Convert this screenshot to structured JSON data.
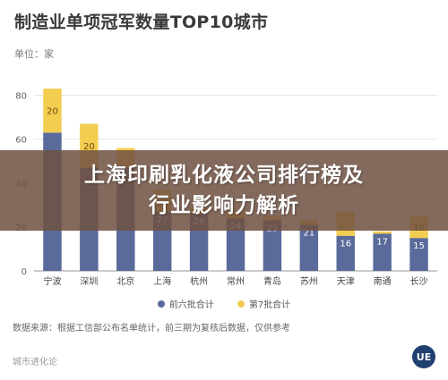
{
  "header": {
    "title": "制造业单项冠军数量TOP10城市",
    "unit": "单位：家"
  },
  "overlay": {
    "line1": "上海印刷乳化液公司排行榜及",
    "line2": "行业影响力解析"
  },
  "footer": {
    "source": "数据来源：根据工信部公布名单统计，前三期为复核后数据，仅供参考",
    "brand": "城市进化论",
    "logo": "UE"
  },
  "colors": {
    "series1": "#5a6a9a",
    "series2": "#f3cd50",
    "grid": "#e6e6e6",
    "axis": "#666666",
    "overlay": "#705242"
  },
  "chart_data": {
    "type": "bar",
    "stacked": true,
    "categories": [
      "宁波",
      "深圳",
      "北京",
      "上海",
      "杭州",
      "常州",
      "青岛",
      "苏州",
      "天津",
      "南通",
      "长沙"
    ],
    "series": [
      {
        "name": "前六批合计",
        "values": [
          63,
          47,
          47,
          27,
          26,
          24,
          23,
          21,
          16,
          17,
          15
        ],
        "labels": [
          "",
          "",
          "",
          "27",
          "26",
          "24",
          "23",
          "21",
          "16",
          "17",
          "15"
        ]
      },
      {
        "name": "第7批合计",
        "values": [
          20,
          20,
          9,
          10,
          3,
          3,
          2,
          2,
          11,
          1,
          10
        ],
        "labels": [
          "20",
          "20",
          "",
          "",
          "",
          "",
          "",
          "",
          "",
          "",
          "10"
        ]
      }
    ],
    "yticks": [
      "0",
      "20",
      "40",
      "60",
      "80"
    ],
    "ylim": [
      0,
      90
    ],
    "legend_position": "bottom",
    "grid": true
  }
}
